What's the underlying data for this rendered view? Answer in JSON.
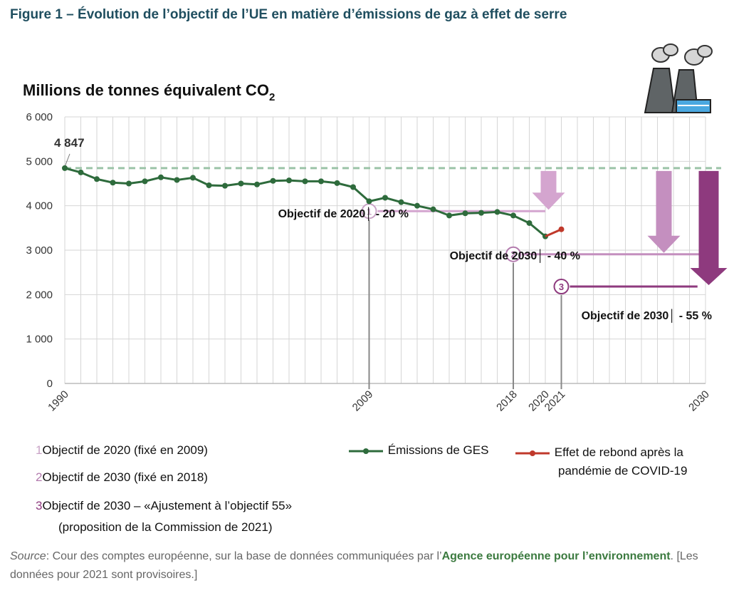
{
  "figure_title": "Figure 1 – Évolution de l’objectif de l’UE en matière d’émissions de gaz à effet de serre",
  "colors": {
    "emissions": "#2e6b3c",
    "rebound": "#c0392b",
    "target1": "#d4a5cf",
    "target2": "#c48fbf",
    "target3": "#8e3a7e",
    "baseline": "#9cc4a8",
    "title": "#1f4e5f",
    "accent": "#3b7a3f"
  },
  "chart_data": {
    "type": "line",
    "ylabel_main": "Millions de tonnes équivalent CO",
    "ylabel_sub": "2",
    "ylim": [
      0,
      6000
    ],
    "yticks": [
      "0",
      "1 000",
      "2 000",
      "3 000",
      "4 000",
      "5 000",
      "6 000"
    ],
    "xticks": [
      "1990",
      "2009",
      "2018",
      "2020",
      "2021",
      "2030"
    ],
    "xlim": [
      1990,
      2030
    ],
    "baseline": 4847,
    "baseline_label": "4 847",
    "series": [
      {
        "name": "Émissions de GES",
        "x": [
          1990,
          1991,
          1992,
          1993,
          1994,
          1995,
          1996,
          1997,
          1998,
          1999,
          2000,
          2001,
          2002,
          2003,
          2004,
          2005,
          2006,
          2007,
          2008,
          2009,
          2010,
          2011,
          2012,
          2013,
          2014,
          2015,
          2016,
          2017,
          2018,
          2019,
          2020
        ],
        "values": [
          4847,
          4750,
          4600,
          4520,
          4500,
          4550,
          4640,
          4580,
          4630,
          4460,
          4450,
          4500,
          4480,
          4560,
          4570,
          4550,
          4550,
          4510,
          4420,
          4100,
          4180,
          4080,
          4000,
          3920,
          3780,
          3830,
          3840,
          3860,
          3780,
          3610,
          3310
        ]
      },
      {
        "name": "Effet de rebond après la pandémie de COVID-19",
        "x": [
          2020,
          2021
        ],
        "values": [
          3310,
          3470
        ]
      }
    ],
    "targets": [
      {
        "id": "1",
        "label": "Objectif de 2020",
        "pct": "- 20 %",
        "value": 3878,
        "set_year": 2009,
        "target_year": 2020
      },
      {
        "id": "2",
        "label": "Objectif de 2030",
        "pct": "- 40 %",
        "value": 2908,
        "set_year": 2018,
        "target_year": 2030
      },
      {
        "id": "3",
        "label": "Objectif de 2030",
        "pct": "- 55 %",
        "value": 2181,
        "set_year": 2021,
        "target_year": 2030
      }
    ]
  },
  "legend": {
    "items": [
      {
        "id": "1",
        "text": "Objectif de 2020 (fixé en 2009)"
      },
      {
        "id": "2",
        "text": "Objectif de 2030 (fixé en 2018)"
      },
      {
        "id": "3",
        "text": "Objectif de 2030 – «Ajustement à l’objectif 55»",
        "text2": "(proposition de la Commission de 2021)"
      }
    ],
    "series1": "Émissions de GES",
    "series2_line1": "Effet de rebond après la",
    "series2_line2": "pandémie de COVID-19"
  },
  "source": {
    "label": "Source",
    "text1": ": Cour des comptes européenne, sur la base de données communiquées par l’",
    "link": "Agence européenne pour l’environnement",
    "text2": ". [Les données pour 2021 sont provisoires.]"
  }
}
